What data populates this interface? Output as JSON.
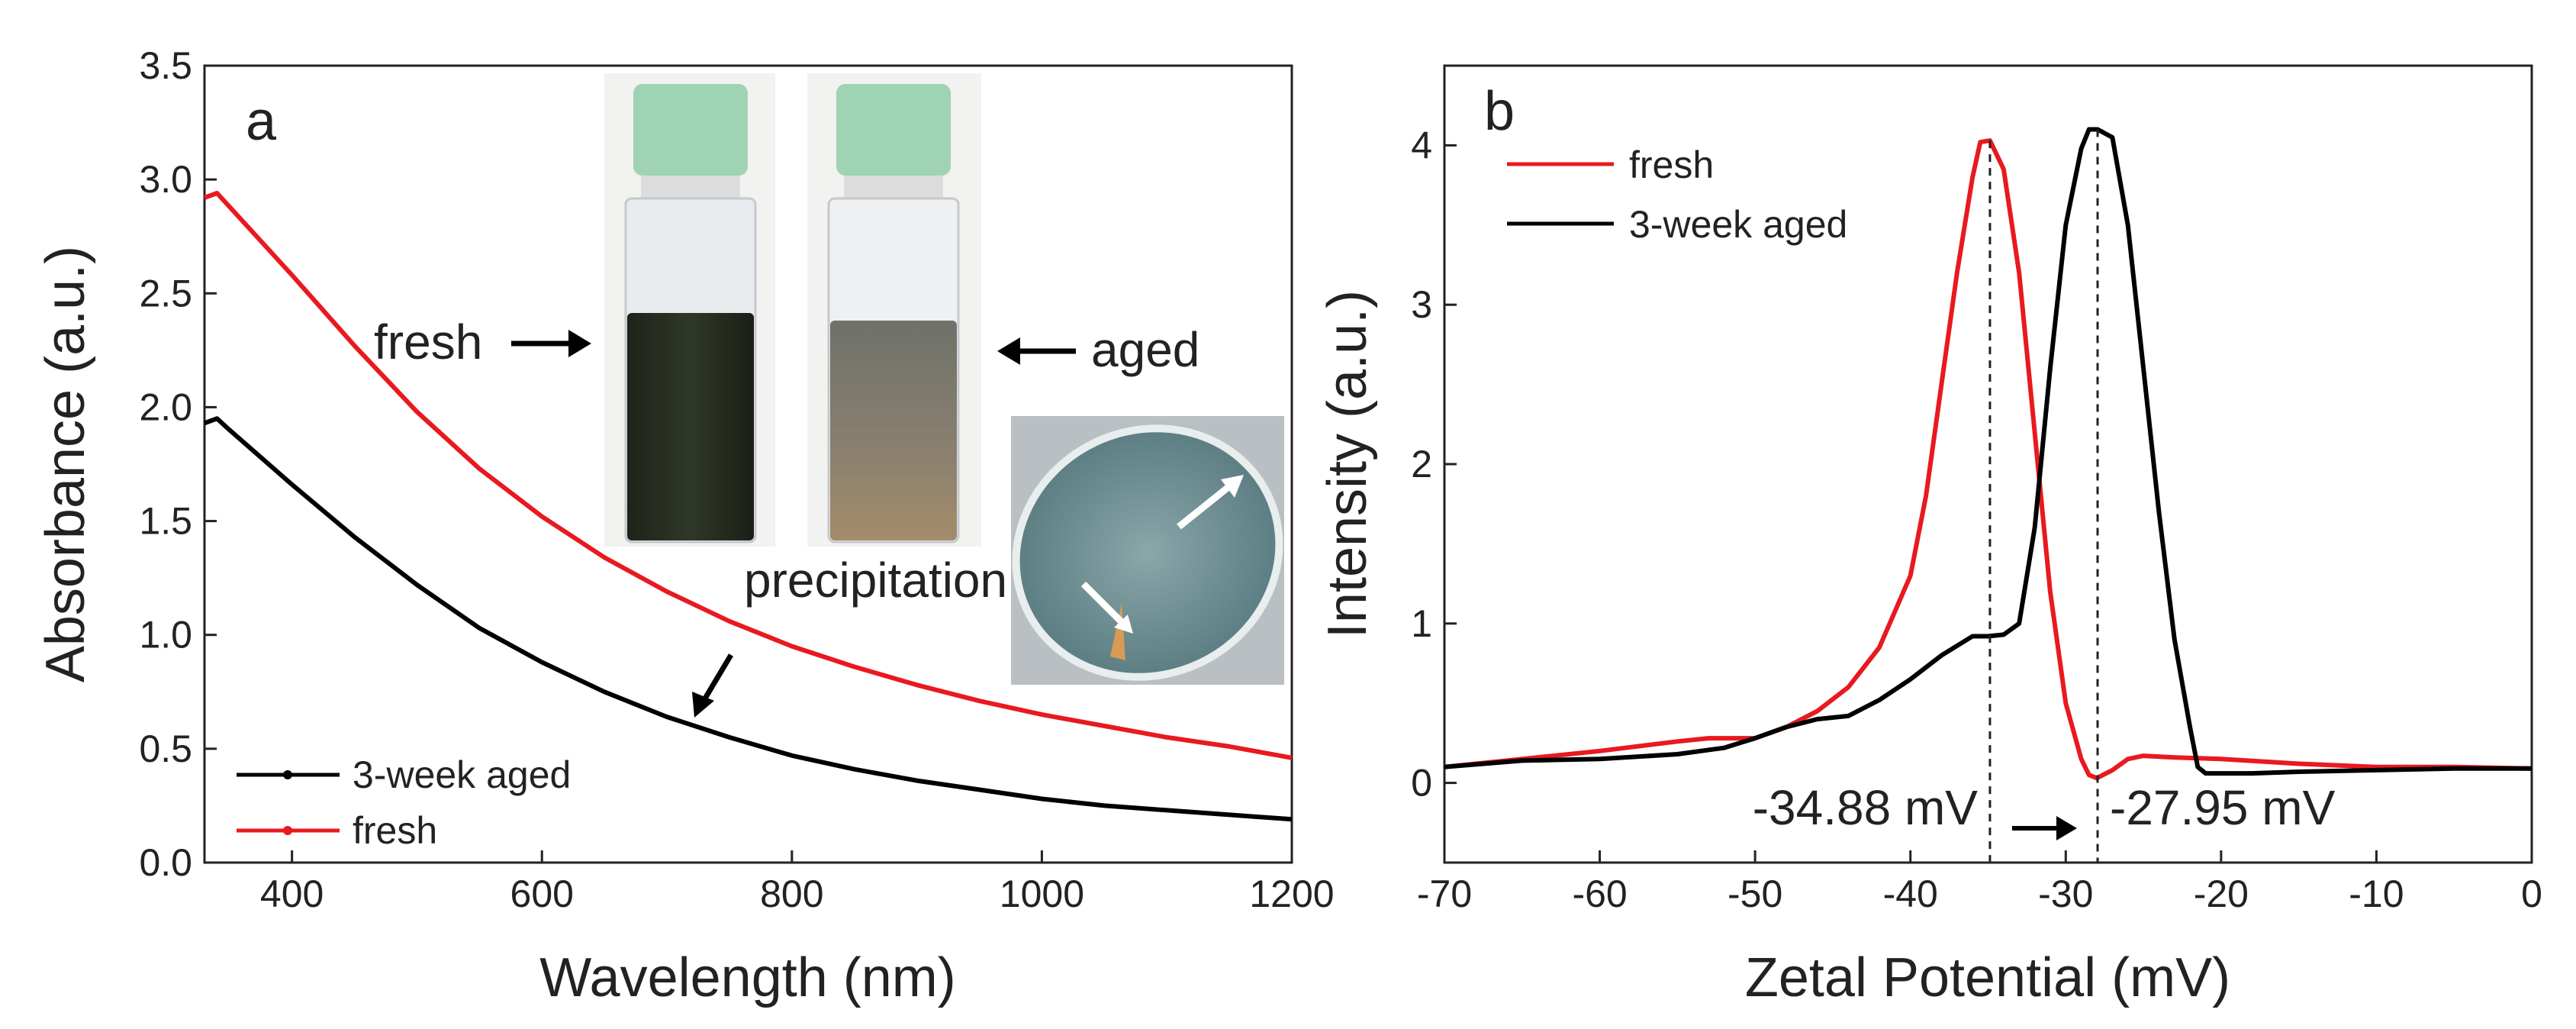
{
  "chart_data": [
    {
      "panel": "a",
      "type": "line",
      "xlabel": "Wavelength (nm)",
      "ylabel": "Absorbance (a.u.)",
      "xlim": [
        330,
        1200
      ],
      "ylim": [
        0,
        3.5
      ],
      "xticks": [
        400,
        600,
        800,
        1000,
        1200
      ],
      "yticks": [
        0.0,
        0.5,
        1.0,
        1.5,
        2.0,
        2.5,
        3.0,
        3.5
      ],
      "tick_labels_x": [
        "400",
        "600",
        "800",
        "1000",
        "1200"
      ],
      "tick_labels_y": [
        "0.0",
        "0.5",
        "1.0",
        "1.5",
        "2.0",
        "2.5",
        "3.0",
        "3.5"
      ],
      "legend": {
        "placement": "bottom-left",
        "entries": [
          {
            "name": "3-week aged",
            "color": "#000000"
          },
          {
            "name": "fresh",
            "color": "#e8191f"
          }
        ]
      },
      "series": [
        {
          "name": "fresh",
          "color": "#e8191f",
          "x": [
            330,
            340,
            350,
            400,
            450,
            500,
            550,
            600,
            650,
            700,
            750,
            800,
            850,
            900,
            950,
            1000,
            1050,
            1100,
            1150,
            1200
          ],
          "values": [
            2.92,
            2.94,
            2.88,
            2.58,
            2.27,
            1.98,
            1.73,
            1.52,
            1.34,
            1.19,
            1.06,
            0.95,
            0.86,
            0.78,
            0.71,
            0.65,
            0.6,
            0.55,
            0.51,
            0.46
          ]
        },
        {
          "name": "3-week aged",
          "color": "#000000",
          "x": [
            330,
            340,
            350,
            400,
            450,
            500,
            550,
            600,
            650,
            700,
            750,
            800,
            850,
            900,
            950,
            1000,
            1050,
            1100,
            1150,
            1200
          ],
          "values": [
            1.93,
            1.95,
            1.9,
            1.66,
            1.43,
            1.22,
            1.03,
            0.88,
            0.75,
            0.64,
            0.55,
            0.47,
            0.41,
            0.36,
            0.32,
            0.28,
            0.25,
            0.23,
            0.21,
            0.19
          ]
        }
      ],
      "annotations": {
        "fresh_label": "fresh",
        "aged_label": "aged",
        "precipitation_label": "precipitation"
      },
      "inset_photos": [
        "fresh vial",
        "aged vial",
        "precipitation dish"
      ]
    },
    {
      "panel": "b",
      "type": "line",
      "xlabel": "Zetal Potential (mV)",
      "ylabel": "Intensity (a.u.)",
      "xlim": [
        -70,
        0
      ],
      "ylim": [
        -0.5,
        4.5
      ],
      "xticks": [
        -70,
        -60,
        -50,
        -40,
        -30,
        -20,
        -10,
        0
      ],
      "yticks": [
        0,
        1,
        2,
        3,
        4
      ],
      "tick_labels_x": [
        "-70",
        "-60",
        "-50",
        "-40",
        "-30",
        "-20",
        "-10",
        "0"
      ],
      "tick_labels_y": [
        "0",
        "1",
        "2",
        "3",
        "4"
      ],
      "legend": {
        "placement": "top-left",
        "entries": [
          {
            "name": "fresh",
            "color": "#e8191f"
          },
          {
            "name": "3-week aged",
            "color": "#000000"
          }
        ]
      },
      "series": [
        {
          "name": "fresh",
          "color": "#e8191f",
          "x": [
            -70,
            -65,
            -60,
            -55,
            -53,
            -50,
            -48,
            -46,
            -44,
            -42,
            -40,
            -39,
            -38,
            -37,
            -36,
            -35.5,
            -34.88,
            -34,
            -33,
            -32,
            -31,
            -30,
            -29,
            -28.5,
            -28,
            -27,
            -26,
            -25,
            -23,
            -20,
            -15,
            -10,
            -5,
            0
          ],
          "values": [
            0.1,
            0.15,
            0.2,
            0.26,
            0.28,
            0.28,
            0.35,
            0.45,
            0.6,
            0.85,
            1.3,
            1.8,
            2.5,
            3.2,
            3.8,
            4.02,
            4.03,
            3.85,
            3.2,
            2.2,
            1.2,
            0.5,
            0.15,
            0.05,
            0.03,
            0.08,
            0.15,
            0.17,
            0.16,
            0.15,
            0.12,
            0.1,
            0.1,
            0.09
          ]
        },
        {
          "name": "3-week aged",
          "color": "#000000",
          "x": [
            -70,
            -65,
            -60,
            -55,
            -52,
            -50,
            -48,
            -46,
            -44,
            -42,
            -40,
            -38,
            -36,
            -35,
            -34,
            -33,
            -32,
            -31,
            -30,
            -29,
            -28.5,
            -27.95,
            -27,
            -26,
            -25,
            -24,
            -23,
            -22,
            -21.5,
            -21,
            -20,
            -18,
            -15,
            -10,
            -5,
            0
          ],
          "values": [
            0.1,
            0.14,
            0.15,
            0.18,
            0.22,
            0.28,
            0.35,
            0.4,
            0.42,
            0.52,
            0.65,
            0.8,
            0.92,
            0.92,
            0.93,
            1.0,
            1.6,
            2.6,
            3.5,
            3.98,
            4.1,
            4.1,
            4.05,
            3.5,
            2.6,
            1.7,
            0.9,
            0.35,
            0.1,
            0.06,
            0.06,
            0.06,
            0.07,
            0.08,
            0.09,
            0.09
          ]
        }
      ],
      "peaks": [
        {
          "x": -34.88,
          "label": "-34.88 mV"
        },
        {
          "x": -27.95,
          "label": "-27.95 mV"
        }
      ]
    }
  ],
  "panel_a": {
    "letter": "a"
  },
  "panel_b": {
    "letter": "b"
  }
}
